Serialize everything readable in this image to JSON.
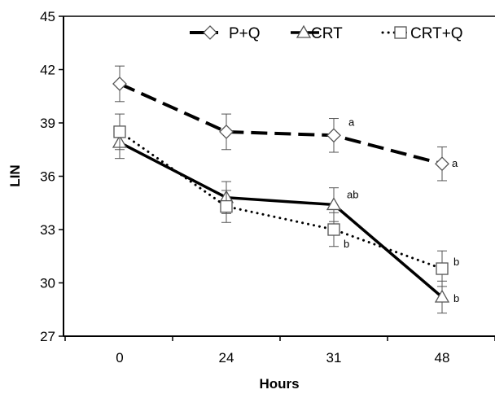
{
  "chart_data": {
    "type": "line",
    "title": "",
    "xlabel": "Hours",
    "ylabel": "LIN",
    "categories": [
      "0",
      "24",
      "31",
      "48"
    ],
    "ylim": [
      27,
      45
    ],
    "yticks": [
      27,
      30,
      33,
      36,
      39,
      42,
      45
    ],
    "legend_position": "top-right",
    "series": [
      {
        "name": "P+Q",
        "marker": "diamond",
        "line_style": "dashed",
        "color": "#000000",
        "values": [
          41.2,
          38.5,
          38.3,
          36.7
        ],
        "error": [
          1.0,
          1.0,
          0.95,
          0.95
        ],
        "annotations": [
          "",
          "",
          "a",
          "a"
        ]
      },
      {
        "name": "CRT",
        "marker": "triangle",
        "line_style": "solid",
        "color": "#000000",
        "values": [
          37.9,
          34.8,
          34.4,
          29.2
        ],
        "error": [
          0.9,
          0.9,
          0.95,
          0.9
        ],
        "annotations": [
          "",
          "",
          "ab",
          "b"
        ]
      },
      {
        "name": "CRT+Q",
        "marker": "square",
        "line_style": "dotted",
        "color": "#000000",
        "values": [
          38.5,
          34.3,
          33.0,
          30.8
        ],
        "error": [
          1.0,
          0.9,
          0.95,
          1.0
        ],
        "annotations": [
          "",
          "",
          "b",
          "b"
        ]
      }
    ]
  }
}
